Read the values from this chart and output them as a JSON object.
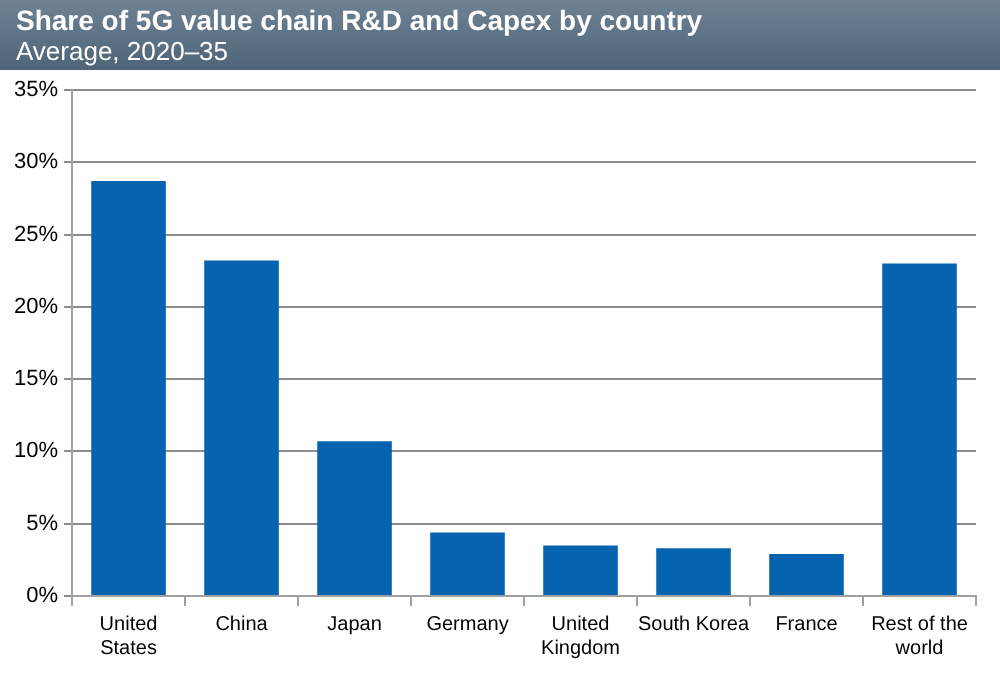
{
  "chart_data": {
    "type": "bar",
    "title": "Share of 5G value chain R&D and Capex by country",
    "subtitle": "Average, 2020–35",
    "categories": [
      "United States",
      "China",
      "Japan",
      "Germany",
      "United Kingdom",
      "South Korea",
      "France",
      "Rest of the world"
    ],
    "values": [
      28.7,
      23.2,
      10.7,
      4.4,
      3.5,
      3.3,
      2.9,
      23.0
    ],
    "color": "#0563b0",
    "ylim": [
      0,
      35
    ],
    "yticks": [
      {
        "value": 0,
        "label": "0%"
      },
      {
        "value": 5,
        "label": "5%"
      },
      {
        "value": 10,
        "label": "10%"
      },
      {
        "value": 15,
        "label": "15%"
      },
      {
        "value": 20,
        "label": "20%"
      },
      {
        "value": 25,
        "label": "25%"
      },
      {
        "value": 30,
        "label": "30%"
      },
      {
        "value": 35,
        "label": "35%"
      }
    ],
    "grid": "y",
    "legend": false
  }
}
